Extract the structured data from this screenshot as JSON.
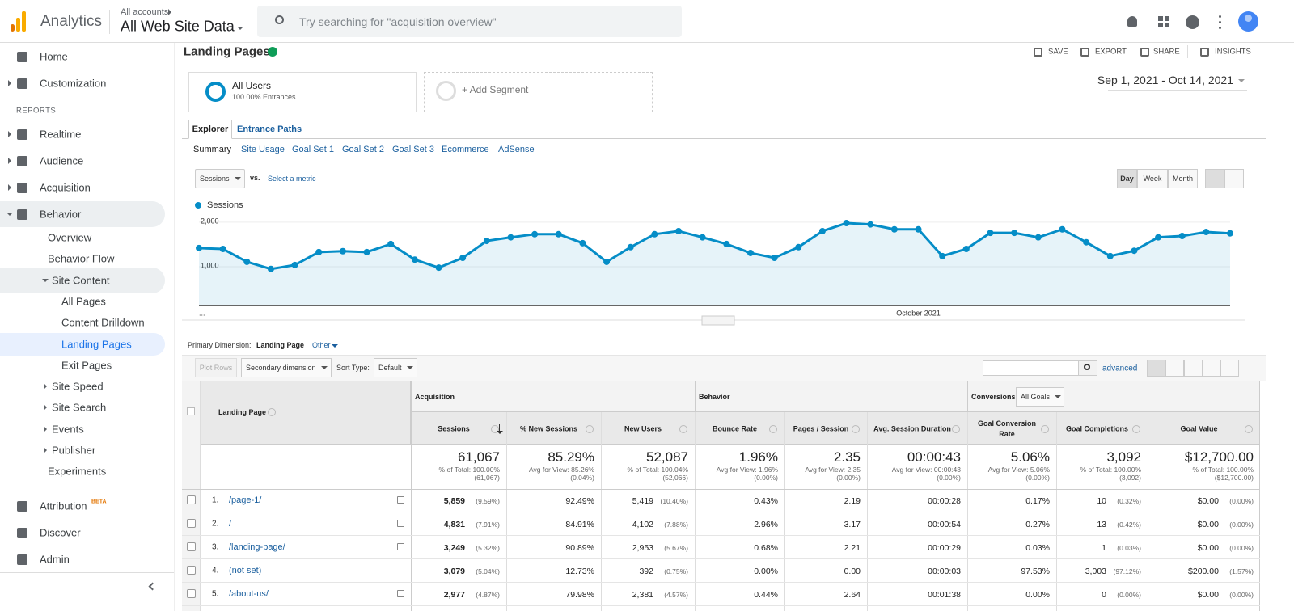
{
  "header": {
    "product": "Analytics",
    "breadcrumb": "All accounts",
    "property": "All Web Site Data",
    "search_placeholder": "Try searching for \"acquisition overview\""
  },
  "sidebar": {
    "section": "REPORTS",
    "beta": "BETA",
    "items": [
      "Home",
      "Customization",
      "Realtime",
      "Audience",
      "Acquisition",
      "Behavior",
      "Overview",
      "Behavior Flow",
      "Site Content",
      "All Pages",
      "Content Drilldown",
      "Landing Pages",
      "Exit Pages",
      "Site Speed",
      "Site Search",
      "Events",
      "Publisher",
      "Experiments",
      "Attribution",
      "Discover",
      "Admin"
    ]
  },
  "report": {
    "title": "Landing Pages",
    "actions": [
      "SAVE",
      "EXPORT",
      "SHARE",
      "INSIGHTS"
    ],
    "segment": {
      "name": "All Users",
      "detail": "100.00% Entrances"
    },
    "add_segment": "+ Add Segment",
    "date_range": "Sep 1, 2021 - Oct 14, 2021",
    "tabs": [
      "Explorer",
      "Entrance Paths"
    ],
    "subtabs": [
      "Summary",
      "Site Usage",
      "Goal Set 1",
      "Goal Set 2",
      "Goal Set 3",
      "Ecommerce",
      "AdSense"
    ],
    "metric": "Sessions",
    "vs": "vs.",
    "select_metric": "Select a metric",
    "periods": [
      "Day",
      "Week",
      "Month"
    ]
  },
  "chart_data": {
    "type": "line",
    "categories": [
      "...",
      null,
      null,
      null,
      null,
      null,
      null,
      null,
      null,
      null,
      null,
      null,
      null,
      null,
      null,
      null,
      null,
      null,
      null,
      null,
      null,
      null,
      null,
      null,
      null,
      null,
      null,
      null,
      null,
      null,
      "October 2021",
      null,
      null,
      null,
      null,
      null,
      null,
      null,
      null,
      null,
      null,
      null,
      null,
      null
    ],
    "series": [
      {
        "name": "Sessions",
        "color": "#058dc7",
        "values": [
          1420,
          1400,
          1110,
          950,
          1040,
          1330,
          1350,
          1330,
          1510,
          1160,
          980,
          1200,
          1580,
          1660,
          1730,
          1730,
          1530,
          1110,
          1440,
          1730,
          1800,
          1660,
          1510,
          1310,
          1200,
          1440,
          1800,
          1980,
          1950,
          1840,
          1840,
          1240,
          1400,
          1760,
          1760,
          1660,
          1840,
          1550,
          1240,
          1360,
          1660,
          1690,
          1780,
          1750
        ]
      }
    ],
    "ylim": [
      130,
      2180
    ],
    "yticks": [
      {
        "value": 1000,
        "label": "1,000"
      },
      {
        "value": 2000,
        "label": "2,000"
      }
    ],
    "grid": true
  },
  "table": {
    "primary_dimension_label": "Primary Dimension:",
    "primary_dimension": "Landing Page",
    "other": "Other",
    "plot_rows": "Plot Rows",
    "secondary_dimension": "Secondary dimension",
    "sort_type_label": "Sort Type:",
    "sort_type": "Default",
    "advanced": "advanced",
    "dimension_header": "Landing Page",
    "groups": [
      "Acquisition",
      "Behavior",
      "Conversions"
    ],
    "goal_selector": "All Goals",
    "columns": [
      "Sessions",
      "% New Sessions",
      "New Users",
      "Bounce Rate",
      "Pages / Session",
      "Avg. Session Duration",
      "Goal Conversion Rate",
      "Goal Completions",
      "Goal Value"
    ],
    "totals": [
      [
        "61,067",
        "% of Total: 100.00%",
        "(61,067)"
      ],
      [
        "85.29%",
        "Avg for View: 85.26%",
        "(0.04%)"
      ],
      [
        "52,087",
        "% of Total: 100.04%",
        "(52,066)"
      ],
      [
        "1.96%",
        "Avg for View: 1.96%",
        "(0.00%)"
      ],
      [
        "2.35",
        "Avg for View: 2.35",
        "(0.00%)"
      ],
      [
        "00:00:43",
        "Avg for View: 00:00:43",
        "(0.00%)"
      ],
      [
        "5.06%",
        "Avg for View: 5.06%",
        "(0.00%)"
      ],
      [
        "3,092",
        "% of Total: 100.00%",
        "(3,092)"
      ],
      [
        "$12,700.00",
        "% of Total: 100.00%",
        "($12,700.00)"
      ]
    ],
    "rows": [
      {
        "num": "1.",
        "page": "/page-1/",
        "cells": [
          [
            "5,859",
            "(9.59%)"
          ],
          [
            "92.49%"
          ],
          [
            "5,419",
            "(10.40%)"
          ],
          [
            "0.43%"
          ],
          [
            "2.19"
          ],
          [
            "00:00:28"
          ],
          [
            "0.17%"
          ],
          [
            "10",
            "(0.32%)"
          ],
          [
            "$0.00",
            "(0.00%)"
          ]
        ]
      },
      {
        "num": "2.",
        "page": "/",
        "cells": [
          [
            "4,831",
            "(7.91%)"
          ],
          [
            "84.91%"
          ],
          [
            "4,102",
            "(7.88%)"
          ],
          [
            "2.96%"
          ],
          [
            "3.17"
          ],
          [
            "00:00:54"
          ],
          [
            "0.27%"
          ],
          [
            "13",
            "(0.42%)"
          ],
          [
            "$0.00",
            "(0.00%)"
          ]
        ]
      },
      {
        "num": "3.",
        "page": "/landing-page/",
        "cells": [
          [
            "3,249",
            "(5.32%)"
          ],
          [
            "90.89%"
          ],
          [
            "2,953",
            "(5.67%)"
          ],
          [
            "0.68%"
          ],
          [
            "2.21"
          ],
          [
            "00:00:29"
          ],
          [
            "0.03%"
          ],
          [
            "1",
            "(0.03%)"
          ],
          [
            "$0.00",
            "(0.00%)"
          ]
        ]
      },
      {
        "num": "4.",
        "page": "(not set)",
        "cells": [
          [
            "3,079",
            "(5.04%)"
          ],
          [
            "12.73%"
          ],
          [
            "392",
            "(0.75%)"
          ],
          [
            "0.00%"
          ],
          [
            "0.00"
          ],
          [
            "00:00:03"
          ],
          [
            "97.53%"
          ],
          [
            "3,003",
            "(97.12%)"
          ],
          [
            "$200.00",
            "(1.57%)"
          ]
        ]
      },
      {
        "num": "5.",
        "page": "/about-us/",
        "cells": [
          [
            "2,977",
            "(4.87%)"
          ],
          [
            "79.98%"
          ],
          [
            "2,381",
            "(4.57%)"
          ],
          [
            "0.44%"
          ],
          [
            "2.64"
          ],
          [
            "00:01:38"
          ],
          [
            "0.00%"
          ],
          [
            "0",
            "(0.00%)"
          ],
          [
            "$0.00",
            "(0.00%)"
          ]
        ]
      }
    ]
  }
}
